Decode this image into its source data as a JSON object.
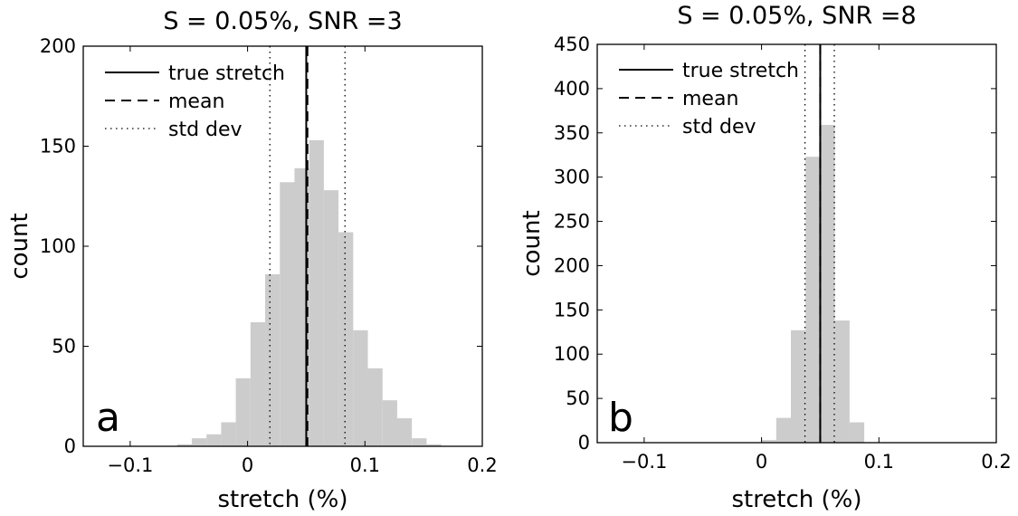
{
  "chart_data": [
    {
      "type": "bar",
      "title": "S = 0.05%, SNR =3",
      "panel_label": "a",
      "xlabel": "stretch (%)",
      "ylabel": "count",
      "xlim": [
        -0.14,
        0.2
      ],
      "ylim": [
        0,
        200
      ],
      "xticks": [
        -0.1,
        0,
        0.1,
        0.2
      ],
      "xtick_labels": [
        "−0.1",
        "0",
        "0.1",
        "0.2"
      ],
      "yticks": [
        0,
        50,
        100,
        150,
        200
      ],
      "ytick_labels": [
        "0",
        "50",
        "100",
        "150",
        "200"
      ],
      "bin_width": 0.0125,
      "bins": [
        {
          "x0": -0.06,
          "count": 1
        },
        {
          "x0": -0.0475,
          "count": 4
        },
        {
          "x0": -0.035,
          "count": 6
        },
        {
          "x0": -0.0225,
          "count": 12
        },
        {
          "x0": -0.01,
          "count": 34
        },
        {
          "x0": 0.0025,
          "count": 62
        },
        {
          "x0": 0.015,
          "count": 86
        },
        {
          "x0": 0.0275,
          "count": 132
        },
        {
          "x0": 0.04,
          "count": 139
        },
        {
          "x0": 0.0525,
          "count": 153
        },
        {
          "x0": 0.065,
          "count": 128
        },
        {
          "x0": 0.0775,
          "count": 107
        },
        {
          "x0": 0.09,
          "count": 58
        },
        {
          "x0": 0.1025,
          "count": 39
        },
        {
          "x0": 0.115,
          "count": 23
        },
        {
          "x0": 0.1275,
          "count": 14
        },
        {
          "x0": 0.14,
          "count": 4
        },
        {
          "x0": 0.1525,
          "count": 1
        }
      ],
      "bar_color": "#cccccc",
      "true_stretch": 0.05,
      "mean": 0.051,
      "std_dev_lines": [
        0.019,
        0.083
      ],
      "legend": {
        "placement": "top-left",
        "entries": [
          {
            "label": "true stretch",
            "style": "solid"
          },
          {
            "label": "mean",
            "style": "dashed"
          },
          {
            "label": "std dev",
            "style": "dotted"
          }
        ]
      }
    },
    {
      "type": "bar",
      "title": "S = 0.05%, SNR =8",
      "panel_label": "b",
      "xlabel": "stretch (%)",
      "ylabel": "count",
      "xlim": [
        -0.14,
        0.2
      ],
      "ylim": [
        0,
        450
      ],
      "xticks": [
        -0.1,
        0,
        0.1,
        0.2
      ],
      "xtick_labels": [
        "−0.1",
        "0",
        "0.1",
        "0.2"
      ],
      "yticks": [
        0,
        50,
        100,
        150,
        200,
        250,
        300,
        350,
        400,
        450
      ],
      "ytick_labels": [
        "0",
        "50",
        "100",
        "150",
        "200",
        "250",
        "300",
        "350",
        "400",
        "450"
      ],
      "bin_width": 0.0125,
      "bins": [
        {
          "x0": 0.0,
          "count": 3
        },
        {
          "x0": 0.0125,
          "count": 28
        },
        {
          "x0": 0.025,
          "count": 127
        },
        {
          "x0": 0.0375,
          "count": 323
        },
        {
          "x0": 0.05,
          "count": 359
        },
        {
          "x0": 0.0625,
          "count": 138
        },
        {
          "x0": 0.075,
          "count": 23
        }
      ],
      "bar_color": "#cccccc",
      "true_stretch": 0.05,
      "mean": 0.05,
      "std_dev_lines": [
        0.037,
        0.062
      ],
      "legend": {
        "placement": "top-left",
        "entries": [
          {
            "label": "true stretch",
            "style": "solid"
          },
          {
            "label": "mean",
            "style": "dashed"
          },
          {
            "label": "std dev",
            "style": "dotted"
          }
        ]
      }
    }
  ]
}
